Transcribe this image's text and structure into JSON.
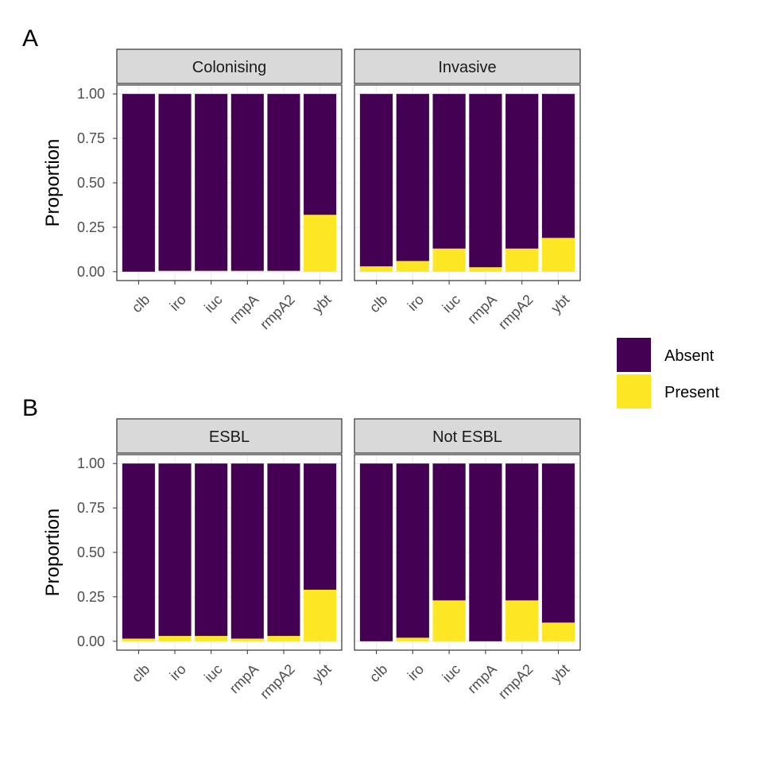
{
  "colors": {
    "absent": "#440154",
    "present": "#FDE725",
    "strip_bg": "#D9D9D9",
    "panel_border": "#333333",
    "grid": "#EBEBEB"
  },
  "legend": {
    "items": [
      {
        "label": "Absent",
        "color_key": "absent"
      },
      {
        "label": "Present",
        "color_key": "present"
      }
    ],
    "position": "right"
  },
  "chart_data": [
    {
      "type": "bar",
      "stacked": true,
      "tag": "A",
      "ylabel": "Proportion",
      "ylim": [
        0,
        1
      ],
      "yticks": [
        "0.00",
        "0.25",
        "0.50",
        "0.75",
        "1.00"
      ],
      "ytick_values": [
        0,
        0.25,
        0.5,
        0.75,
        1
      ],
      "grid": true,
      "categories": [
        "clb",
        "iro",
        "iuc",
        "rmpA",
        "rmpA2",
        "ybt"
      ],
      "facets": [
        {
          "label": "Colonising",
          "series": [
            {
              "name": "Present",
              "values": [
                0.0,
                0.005,
                0.005,
                0.005,
                0.005,
                0.32
              ]
            },
            {
              "name": "Absent",
              "values": [
                1.0,
                0.995,
                0.995,
                0.995,
                0.995,
                0.68
              ]
            }
          ]
        },
        {
          "label": "Invasive",
          "series": [
            {
              "name": "Present",
              "values": [
                0.03,
                0.06,
                0.13,
                0.025,
                0.13,
                0.19
              ]
            },
            {
              "name": "Absent",
              "values": [
                0.97,
                0.94,
                0.87,
                0.975,
                0.87,
                0.81
              ]
            }
          ]
        }
      ]
    },
    {
      "type": "bar",
      "stacked": true,
      "tag": "B",
      "ylabel": "Proportion",
      "ylim": [
        0,
        1
      ],
      "yticks": [
        "0.00",
        "0.25",
        "0.50",
        "0.75",
        "1.00"
      ],
      "ytick_values": [
        0,
        0.25,
        0.5,
        0.75,
        1
      ],
      "grid": true,
      "categories": [
        "clb",
        "iro",
        "iuc",
        "rmpA",
        "rmpA2",
        "ybt"
      ],
      "facets": [
        {
          "label": "ESBL",
          "series": [
            {
              "name": "Present",
              "values": [
                0.015,
                0.03,
                0.03,
                0.015,
                0.03,
                0.29
              ]
            },
            {
              "name": "Absent",
              "values": [
                0.985,
                0.97,
                0.97,
                0.985,
                0.97,
                0.71
              ]
            }
          ]
        },
        {
          "label": "Not ESBL",
          "series": [
            {
              "name": "Present",
              "values": [
                0.0,
                0.02,
                0.23,
                0.0,
                0.23,
                0.105
              ]
            },
            {
              "name": "Absent",
              "values": [
                1.0,
                0.98,
                0.77,
                1.0,
                0.77,
                0.895
              ]
            }
          ]
        }
      ]
    }
  ]
}
